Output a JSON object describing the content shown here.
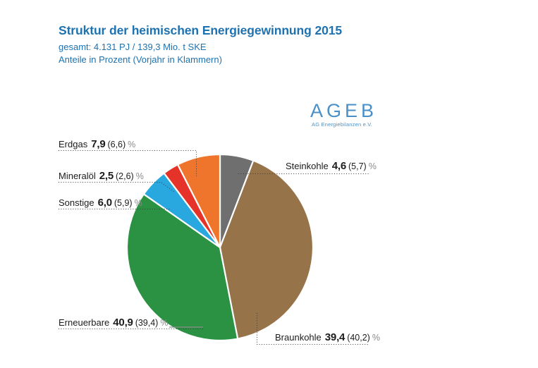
{
  "header": {
    "title": "Struktur der heimischen Energiegewinnung 2015",
    "subtitle": "gesamt: 4.131 PJ / 139,3 Mio. t SKE",
    "note": "Anteile in Prozent (Vorjahr in Klammern)"
  },
  "logo": {
    "text": "AGEB",
    "subtext": "AG Energiebilanzen e.V."
  },
  "chart_data": {
    "type": "pie",
    "title": "Struktur der heimischen Energiegewinnung 2015",
    "subtitle": "gesamt: 4.131 PJ / 139,3 Mio. t SKE",
    "note": "Anteile in Prozent (Vorjahr in Klammern)",
    "unit": "%",
    "percent_sign": "%",
    "legend_position": "direct labels with dotted leader lines",
    "start_angle_deg": 0,
    "clockwise": true,
    "slices": [
      {
        "label": "Steinkohle",
        "value": 4.6,
        "value_label": "4,6",
        "prev_year": 5.7,
        "prev_label": "(5,7)",
        "color": "#6f6f6f",
        "drawn_angle_deg": 21
      },
      {
        "label": "Braunkohle",
        "value": 39.4,
        "value_label": "39,4",
        "prev_year": 40.2,
        "prev_label": "(40,2)",
        "color": "#97734a",
        "drawn_angle_deg": 148
      },
      {
        "label": "Erneuerbare",
        "value": 40.9,
        "value_label": "40,9",
        "prev_year": 39.4,
        "prev_label": "(39,4)",
        "color": "#2b9243",
        "drawn_angle_deg": 136
      },
      {
        "label": "Sonstige",
        "value": 6.0,
        "value_label": "6,0",
        "prev_year": 5.9,
        "prev_label": "(5,9)",
        "color": "#29a8e0",
        "drawn_angle_deg": 18
      },
      {
        "label": "Mineralöl",
        "value": 2.5,
        "value_label": "2,5",
        "prev_year": 2.6,
        "prev_label": "(2,6)",
        "color": "#e63329",
        "drawn_angle_deg": 10
      },
      {
        "label": "Erdgas",
        "value": 7.9,
        "value_label": "7,9",
        "prev_year": 6.6,
        "prev_label": "(6,6)",
        "color": "#f0752c",
        "drawn_angle_deg": 27
      }
    ]
  }
}
